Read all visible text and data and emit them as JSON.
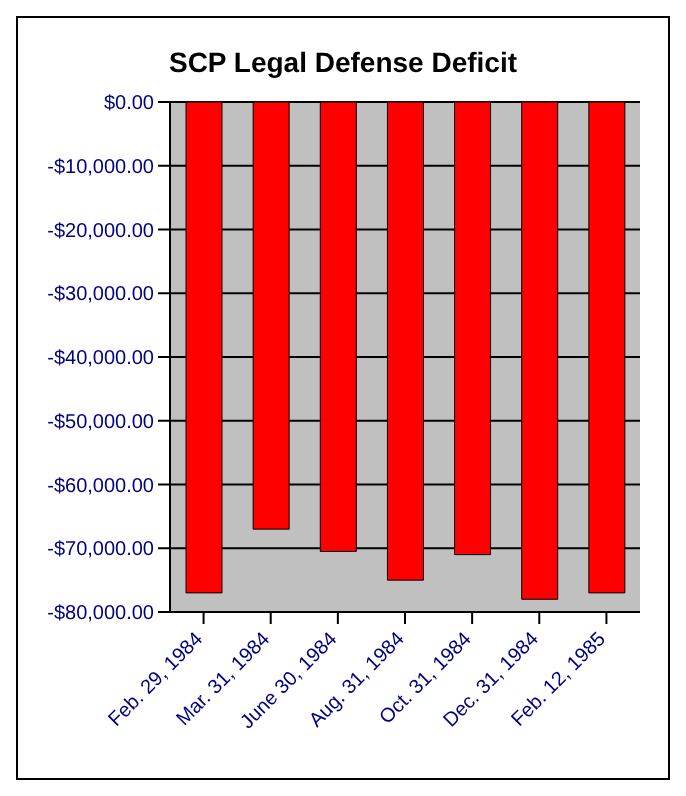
{
  "chart_data": {
    "type": "bar",
    "title": "SCP Legal Defense Deficit",
    "categories": [
      "Feb. 29, 1984",
      "Mar. 31, 1984",
      "June 30, 1984",
      "Aug. 31, 1984",
      "Oct. 31, 1984",
      "Dec. 31, 1984",
      "Feb. 12, 1985"
    ],
    "values": [
      -77000,
      -67000,
      -70500,
      -75000,
      -71000,
      -78000,
      -77000
    ],
    "color": "#ff0000",
    "ylim": [
      -80000,
      0
    ],
    "yticks": [
      {
        "value": 0,
        "label": "$0.00"
      },
      {
        "value": -10000,
        "label": "-$10,000.00"
      },
      {
        "value": -20000,
        "label": "-$20,000.00"
      },
      {
        "value": -30000,
        "label": "-$30,000.00"
      },
      {
        "value": -40000,
        "label": "-$40,000.00"
      },
      {
        "value": -50000,
        "label": "-$50,000.00"
      },
      {
        "value": -60000,
        "label": "-$60,000.00"
      },
      {
        "value": -70000,
        "label": "-$70,000.00"
      },
      {
        "value": -80000,
        "label": "-$80,000.00"
      }
    ],
    "grid": "y"
  }
}
